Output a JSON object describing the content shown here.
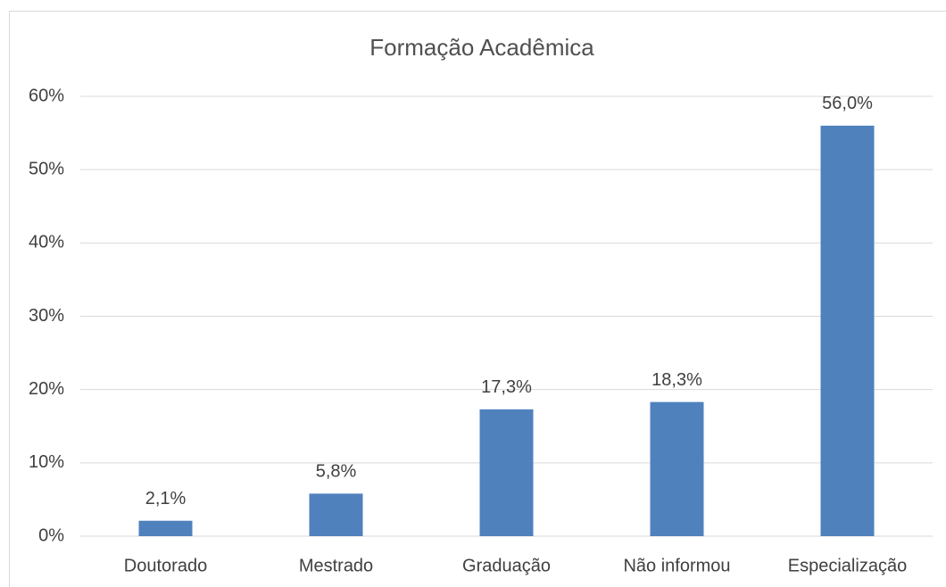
{
  "chart_data": {
    "type": "bar",
    "title": "Formação Acadêmica",
    "categories": [
      "Doutorado",
      "Mestrado",
      "Graduação",
      "Não informou",
      "Especialização"
    ],
    "values": [
      2.1,
      5.8,
      17.3,
      18.3,
      56.0
    ],
    "value_labels": [
      "2,1%",
      "5,8%",
      "17,3%",
      "18,3%",
      "56,0%"
    ],
    "color": "#4f81bd",
    "ylim": [
      0,
      60
    ],
    "yticks": [
      {
        "value": 0,
        "label": "0%"
      },
      {
        "value": 10,
        "label": "10%"
      },
      {
        "value": 20,
        "label": "20%"
      },
      {
        "value": 30,
        "label": "30%"
      },
      {
        "value": 40,
        "label": "40%"
      },
      {
        "value": 50,
        "label": "50%"
      },
      {
        "value": 60,
        "label": "60%"
      }
    ],
    "grid": true
  }
}
